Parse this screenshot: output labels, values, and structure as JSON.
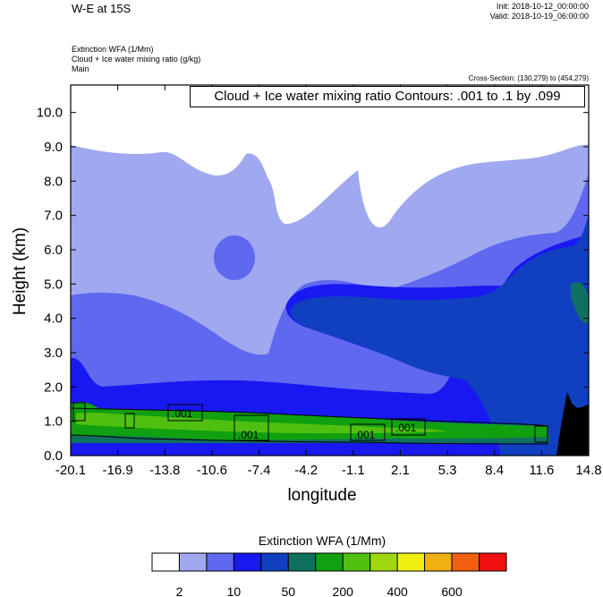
{
  "header": {
    "title": "W-E at 15S",
    "init": "Init: 2018-10-12_00:00:00",
    "valid": "Valid: 2018-10-19_06:00:00",
    "field1": "Extinction WFA   (1/Mm)",
    "field2": "Cloud + Ice water mixing ratio    (g/kg)",
    "field3": "Main",
    "cross_section": "Cross-Section: (130,279) to (454,279)",
    "contour_info": "Cloud + Ice water mixing ratio Contours: .001 to .1 by .099"
  },
  "chart_data": {
    "type": "heatmap",
    "xlabel": "longitude",
    "ylabel": "Height (km)",
    "xlim": [
      -20.1,
      14.8
    ],
    "ylim": [
      0.0,
      10.8
    ],
    "x_ticks": [
      "-20.1",
      "-16.9",
      "-13.8",
      "-10.6",
      "-7.4",
      "-4.2",
      "-1.1",
      "2.1",
      "5.3",
      "8.4",
      "11.6",
      "14.8"
    ],
    "y_ticks": [
      "0.0",
      "1.0",
      "2.0",
      "3.0",
      "4.0",
      "5.0",
      "6.0",
      "7.0",
      "8.0",
      "9.0",
      "10.0"
    ],
    "contour_labels": [
      ".001",
      ".001",
      ".001",
      ".001"
    ],
    "colorbar": {
      "title": "Extinction WFA  (1/Mm)",
      "colors": [
        "#ffffff",
        "#a0a8f0",
        "#6068f0",
        "#1818f0",
        "#1040c0",
        "#107060",
        "#10a010",
        "#50c010",
        "#a0d810",
        "#f0f010",
        "#f0b010",
        "#f06010",
        "#f01010"
      ],
      "labels": [
        "2",
        "10",
        "50",
        "200",
        "400",
        "600"
      ]
    }
  }
}
